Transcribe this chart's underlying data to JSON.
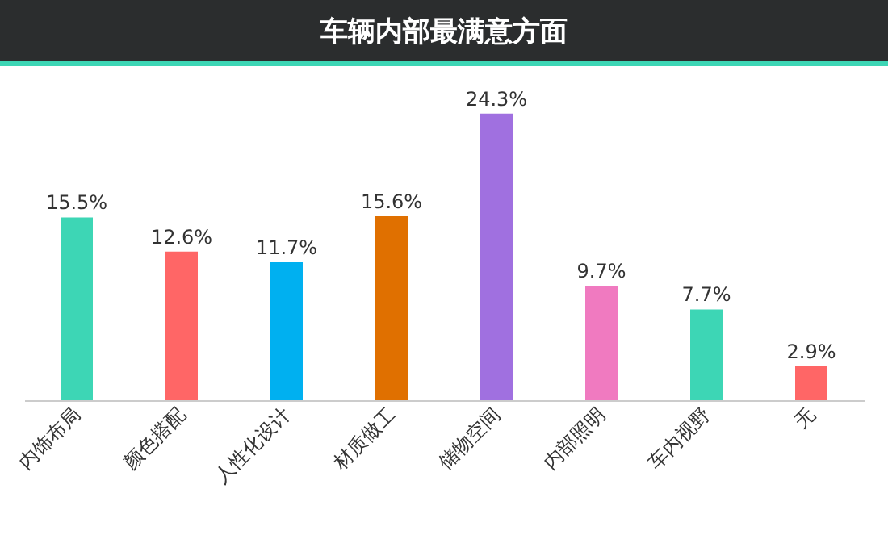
{
  "chart_data": {
    "type": "bar",
    "title": "车辆内部最满意方面",
    "categories": [
      "内饰布局",
      "颜色搭配",
      "人性化设计",
      "材质做工",
      "储物空间",
      "内部照明",
      "车内视野",
      "无"
    ],
    "values": [
      15.5,
      12.6,
      11.7,
      15.6,
      24.3,
      9.7,
      7.7,
      2.9
    ],
    "value_labels": [
      "15.5%",
      "12.6%",
      "11.7%",
      "15.6%",
      "24.3%",
      "9.7%",
      "7.7%",
      "2.9%"
    ],
    "colors": [
      "#3dd6b5",
      "#ff6666",
      "#00b0f0",
      "#e07000",
      "#a070e0",
      "#f07ac0",
      "#3dd6b5",
      "#ff6666"
    ],
    "tick_labels": "x",
    "grid": false
  }
}
